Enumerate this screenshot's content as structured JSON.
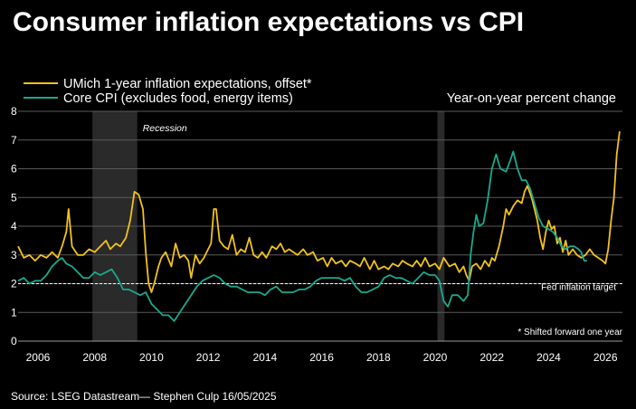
{
  "chart_data": {
    "type": "line",
    "title": "Consumer inflation expectations vs CPI",
    "subtitle": "Year-on-year percent change",
    "source": "Source: LSEG Datastream— Stephen Culp 16/05/2025",
    "footnote": "* Shifted forward one year",
    "ylim": [
      0,
      8
    ],
    "xlim": [
      2005.3,
      2026.6
    ],
    "y_ticks": [
      "0",
      "1",
      "2",
      "3",
      "4",
      "5",
      "6",
      "7",
      "8"
    ],
    "x_ticks": [
      "2006",
      "2008",
      "2010",
      "2012",
      "2014",
      "2016",
      "2018",
      "2020",
      "2022",
      "2024",
      "2026"
    ],
    "grid": true,
    "legend_position": "top-left",
    "fed_target": {
      "value": 2,
      "label": "Fed inflation target"
    },
    "recessions": [
      {
        "label": "Recession",
        "start": 2007.92,
        "end": 2009.5
      },
      {
        "label": "",
        "start": 2020.08,
        "end": 2020.33
      }
    ],
    "series": [
      {
        "name": "UMich 1-year inflation expectations, offset*",
        "color": "#f2c21b",
        "points": [
          [
            2005.3,
            3.3
          ],
          [
            2005.5,
            2.9
          ],
          [
            2005.7,
            3.0
          ],
          [
            2005.9,
            2.8
          ],
          [
            2006.1,
            3.0
          ],
          [
            2006.3,
            2.9
          ],
          [
            2006.5,
            3.1
          ],
          [
            2006.7,
            2.9
          ],
          [
            2006.85,
            3.3
          ],
          [
            2007.0,
            3.8
          ],
          [
            2007.08,
            4.6
          ],
          [
            2007.2,
            3.3
          ],
          [
            2007.4,
            3.0
          ],
          [
            2007.6,
            3.0
          ],
          [
            2007.8,
            3.2
          ],
          [
            2008.0,
            3.1
          ],
          [
            2008.2,
            3.3
          ],
          [
            2008.4,
            3.5
          ],
          [
            2008.55,
            3.2
          ],
          [
            2008.75,
            3.4
          ],
          [
            2008.9,
            3.3
          ],
          [
            2009.1,
            3.6
          ],
          [
            2009.25,
            4.2
          ],
          [
            2009.4,
            5.2
          ],
          [
            2009.55,
            5.1
          ],
          [
            2009.7,
            4.6
          ],
          [
            2009.8,
            3.1
          ],
          [
            2009.9,
            2.0
          ],
          [
            2010.0,
            1.7
          ],
          [
            2010.1,
            2.0
          ],
          [
            2010.25,
            2.6
          ],
          [
            2010.35,
            2.9
          ],
          [
            2010.5,
            3.1
          ],
          [
            2010.7,
            2.6
          ],
          [
            2010.85,
            3.4
          ],
          [
            2011.0,
            2.9
          ],
          [
            2011.15,
            3.0
          ],
          [
            2011.3,
            2.8
          ],
          [
            2011.4,
            2.2
          ],
          [
            2011.55,
            3.0
          ],
          [
            2011.7,
            2.7
          ],
          [
            2011.85,
            2.9
          ],
          [
            2012.0,
            3.2
          ],
          [
            2012.1,
            3.4
          ],
          [
            2012.2,
            4.6
          ],
          [
            2012.28,
            4.6
          ],
          [
            2012.4,
            3.5
          ],
          [
            2012.55,
            3.3
          ],
          [
            2012.7,
            3.2
          ],
          [
            2012.85,
            3.7
          ],
          [
            2013.0,
            3.0
          ],
          [
            2013.15,
            3.2
          ],
          [
            2013.3,
            3.1
          ],
          [
            2013.45,
            3.6
          ],
          [
            2013.6,
            3.0
          ],
          [
            2013.75,
            2.9
          ],
          [
            2013.9,
            3.1
          ],
          [
            2014.05,
            2.9
          ],
          [
            2014.25,
            3.3
          ],
          [
            2014.4,
            3.2
          ],
          [
            2014.55,
            3.4
          ],
          [
            2014.7,
            3.1
          ],
          [
            2014.85,
            3.2
          ],
          [
            2015.0,
            3.1
          ],
          [
            2015.15,
            3.0
          ],
          [
            2015.35,
            3.2
          ],
          [
            2015.5,
            3.0
          ],
          [
            2015.7,
            3.1
          ],
          [
            2015.85,
            2.8
          ],
          [
            2016.05,
            2.9
          ],
          [
            2016.2,
            2.6
          ],
          [
            2016.35,
            2.9
          ],
          [
            2016.5,
            2.7
          ],
          [
            2016.7,
            2.8
          ],
          [
            2016.85,
            2.6
          ],
          [
            2017.0,
            2.8
          ],
          [
            2017.2,
            2.7
          ],
          [
            2017.35,
            2.6
          ],
          [
            2017.5,
            2.9
          ],
          [
            2017.7,
            2.5
          ],
          [
            2017.85,
            2.8
          ],
          [
            2018.0,
            2.5
          ],
          [
            2018.2,
            2.6
          ],
          [
            2018.35,
            2.5
          ],
          [
            2018.5,
            2.7
          ],
          [
            2018.7,
            2.6
          ],
          [
            2018.85,
            2.8
          ],
          [
            2019.0,
            2.7
          ],
          [
            2019.2,
            2.6
          ],
          [
            2019.35,
            2.8
          ],
          [
            2019.5,
            2.6
          ],
          [
            2019.65,
            2.9
          ],
          [
            2019.8,
            2.6
          ],
          [
            2020.0,
            2.7
          ],
          [
            2020.15,
            2.5
          ],
          [
            2020.3,
            2.9
          ],
          [
            2020.5,
            2.6
          ],
          [
            2020.7,
            2.7
          ],
          [
            2020.85,
            2.4
          ],
          [
            2021.0,
            2.6
          ],
          [
            2021.1,
            2.3
          ],
          [
            2021.2,
            2.1
          ],
          [
            2021.3,
            2.6
          ],
          [
            2021.45,
            2.7
          ],
          [
            2021.6,
            2.5
          ],
          [
            2021.75,
            2.8
          ],
          [
            2021.9,
            2.6
          ],
          [
            2022.0,
            2.9
          ],
          [
            2022.1,
            2.8
          ],
          [
            2022.25,
            3.3
          ],
          [
            2022.4,
            4.0
          ],
          [
            2022.5,
            4.6
          ],
          [
            2022.6,
            4.4
          ],
          [
            2022.75,
            4.7
          ],
          [
            2022.9,
            4.9
          ],
          [
            2023.05,
            4.8
          ],
          [
            2023.15,
            5.2
          ],
          [
            2023.25,
            5.4
          ],
          [
            2023.4,
            5.0
          ],
          [
            2023.5,
            4.6
          ],
          [
            2023.6,
            4.2
          ],
          [
            2023.7,
            3.6
          ],
          [
            2023.8,
            3.2
          ],
          [
            2023.9,
            3.8
          ],
          [
            2024.0,
            4.2
          ],
          [
            2024.1,
            3.9
          ],
          [
            2024.2,
            4.0
          ],
          [
            2024.3,
            3.4
          ],
          [
            2024.4,
            3.6
          ],
          [
            2024.5,
            3.1
          ],
          [
            2024.6,
            3.5
          ],
          [
            2024.7,
            3.0
          ],
          [
            2024.85,
            3.2
          ],
          [
            2025.0,
            3.0
          ],
          [
            2025.15,
            2.9
          ],
          [
            2025.3,
            3.0
          ],
          [
            2025.45,
            3.2
          ],
          [
            2025.6,
            3.0
          ],
          [
            2025.75,
            2.9
          ],
          [
            2025.9,
            2.8
          ],
          [
            2026.0,
            2.7
          ],
          [
            2026.1,
            3.2
          ],
          [
            2026.2,
            4.2
          ],
          [
            2026.3,
            5.0
          ],
          [
            2026.4,
            6.5
          ],
          [
            2026.5,
            7.3
          ]
        ]
      },
      {
        "name": "Core CPI (excludes food, energy items)",
        "color": "#1aa98e",
        "points": [
          [
            2005.3,
            2.1
          ],
          [
            2005.5,
            2.2
          ],
          [
            2005.7,
            2.0
          ],
          [
            2005.9,
            2.1
          ],
          [
            2006.1,
            2.1
          ],
          [
            2006.3,
            2.3
          ],
          [
            2006.5,
            2.6
          ],
          [
            2006.7,
            2.8
          ],
          [
            2006.85,
            2.9
          ],
          [
            2007.0,
            2.7
          ],
          [
            2007.2,
            2.6
          ],
          [
            2007.4,
            2.4
          ],
          [
            2007.6,
            2.2
          ],
          [
            2007.8,
            2.2
          ],
          [
            2008.0,
            2.4
          ],
          [
            2008.2,
            2.3
          ],
          [
            2008.4,
            2.4
          ],
          [
            2008.6,
            2.5
          ],
          [
            2008.8,
            2.2
          ],
          [
            2009.0,
            1.8
          ],
          [
            2009.2,
            1.8
          ],
          [
            2009.4,
            1.7
          ],
          [
            2009.6,
            1.6
          ],
          [
            2009.8,
            1.7
          ],
          [
            2010.0,
            1.3
          ],
          [
            2010.2,
            1.1
          ],
          [
            2010.4,
            0.9
          ],
          [
            2010.6,
            0.9
          ],
          [
            2010.8,
            0.7
          ],
          [
            2011.0,
            1.0
          ],
          [
            2011.2,
            1.3
          ],
          [
            2011.4,
            1.6
          ],
          [
            2011.6,
            1.9
          ],
          [
            2011.8,
            2.1
          ],
          [
            2012.0,
            2.2
          ],
          [
            2012.2,
            2.3
          ],
          [
            2012.4,
            2.2
          ],
          [
            2012.6,
            2.0
          ],
          [
            2012.8,
            1.9
          ],
          [
            2013.0,
            1.9
          ],
          [
            2013.2,
            1.8
          ],
          [
            2013.4,
            1.7
          ],
          [
            2013.6,
            1.7
          ],
          [
            2013.8,
            1.7
          ],
          [
            2014.0,
            1.6
          ],
          [
            2014.2,
            1.8
          ],
          [
            2014.4,
            1.9
          ],
          [
            2014.6,
            1.7
          ],
          [
            2014.8,
            1.7
          ],
          [
            2015.0,
            1.7
          ],
          [
            2015.2,
            1.8
          ],
          [
            2015.4,
            1.8
          ],
          [
            2015.6,
            1.9
          ],
          [
            2015.8,
            2.1
          ],
          [
            2016.0,
            2.2
          ],
          [
            2016.2,
            2.2
          ],
          [
            2016.4,
            2.2
          ],
          [
            2016.6,
            2.2
          ],
          [
            2016.8,
            2.1
          ],
          [
            2017.0,
            2.2
          ],
          [
            2017.2,
            1.9
          ],
          [
            2017.4,
            1.7
          ],
          [
            2017.6,
            1.7
          ],
          [
            2017.8,
            1.8
          ],
          [
            2018.0,
            1.9
          ],
          [
            2018.2,
            2.2
          ],
          [
            2018.4,
            2.3
          ],
          [
            2018.6,
            2.2
          ],
          [
            2018.8,
            2.2
          ],
          [
            2019.0,
            2.1
          ],
          [
            2019.2,
            2.0
          ],
          [
            2019.4,
            2.2
          ],
          [
            2019.6,
            2.4
          ],
          [
            2019.8,
            2.3
          ],
          [
            2020.0,
            2.3
          ],
          [
            2020.15,
            2.1
          ],
          [
            2020.3,
            1.4
          ],
          [
            2020.45,
            1.2
          ],
          [
            2020.6,
            1.6
          ],
          [
            2020.8,
            1.6
          ],
          [
            2021.0,
            1.4
          ],
          [
            2021.15,
            1.6
          ],
          [
            2021.25,
            3.0
          ],
          [
            2021.35,
            3.8
          ],
          [
            2021.45,
            4.4
          ],
          [
            2021.55,
            4.0
          ],
          [
            2021.7,
            4.1
          ],
          [
            2021.85,
            4.9
          ],
          [
            2022.0,
            6.0
          ],
          [
            2022.15,
            6.5
          ],
          [
            2022.3,
            6.0
          ],
          [
            2022.5,
            5.9
          ],
          [
            2022.65,
            6.3
          ],
          [
            2022.75,
            6.6
          ],
          [
            2022.9,
            6.0
          ],
          [
            2023.05,
            5.6
          ],
          [
            2023.2,
            5.6
          ],
          [
            2023.35,
            5.3
          ],
          [
            2023.5,
            4.8
          ],
          [
            2023.65,
            4.3
          ],
          [
            2023.8,
            4.0
          ],
          [
            2024.0,
            3.9
          ],
          [
            2024.15,
            3.8
          ],
          [
            2024.3,
            3.6
          ],
          [
            2024.45,
            3.3
          ],
          [
            2024.6,
            3.2
          ],
          [
            2024.75,
            3.3
          ],
          [
            2024.9,
            3.3
          ],
          [
            2025.05,
            3.2
          ],
          [
            2025.15,
            3.1
          ],
          [
            2025.25,
            2.8
          ],
          [
            2025.35,
            2.8
          ]
        ]
      }
    ]
  }
}
